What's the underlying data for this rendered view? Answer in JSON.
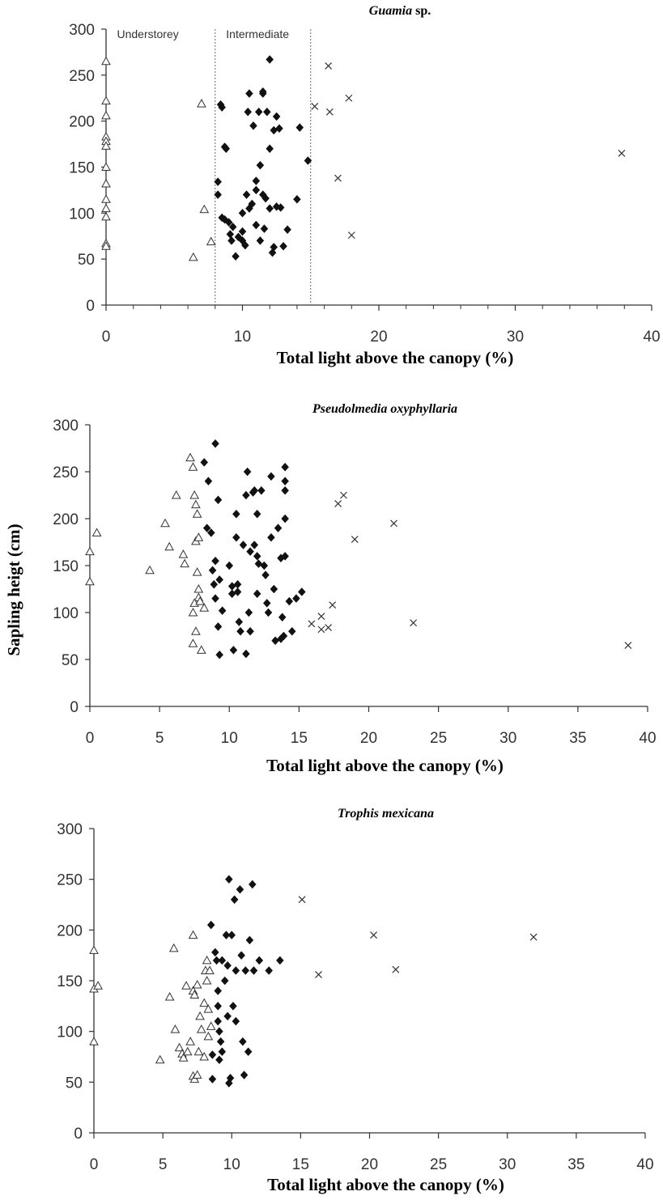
{
  "chart_data": [
    {
      "type": "scatter",
      "title": "Guamia",
      "title_suffix": " sp.",
      "xlabel": "Total light above the canopy (%)",
      "ylabel": "",
      "xlim": [
        0,
        40
      ],
      "ylim": [
        0,
        300
      ],
      "xticks": [
        "0",
        "10",
        "20",
        "30",
        "40"
      ],
      "yticks": [
        "0",
        "50",
        "100",
        "150",
        "200",
        "250",
        "300"
      ],
      "zone_labels": [
        "Understorey",
        "Intermediate"
      ],
      "zone_boundaries": [
        8,
        15
      ],
      "series": [
        {
          "marker": "triangle",
          "points": [
            [
              0,
              265
            ],
            [
              0,
              222
            ],
            [
              0,
              206
            ],
            [
              0,
              183
            ],
            [
              0,
              178
            ],
            [
              0,
              173
            ],
            [
              0,
              150
            ],
            [
              0,
              132
            ],
            [
              0,
              115
            ],
            [
              0,
              105
            ],
            [
              0,
              96
            ],
            [
              0,
              67
            ],
            [
              0,
              64
            ],
            [
              7,
              219
            ],
            [
              7.2,
              104
            ],
            [
              7.7,
              69
            ],
            [
              6.4,
              52
            ]
          ]
        },
        {
          "marker": "diamond",
          "points": [
            [
              8.2,
              134
            ],
            [
              8.2,
              120
            ],
            [
              8.4,
              218
            ],
            [
              8.5,
              215
            ],
            [
              8.7,
              172
            ],
            [
              8.8,
              170
            ],
            [
              8.5,
              95
            ],
            [
              8.7,
              93
            ],
            [
              9,
              90
            ],
            [
              9.1,
              77
            ],
            [
              9.2,
              70
            ],
            [
              9.3,
              85
            ],
            [
              9.5,
              53
            ],
            [
              9.7,
              74
            ],
            [
              10,
              100
            ],
            [
              10,
              80
            ],
            [
              10,
              70
            ],
            [
              10.2,
              65
            ],
            [
              10.3,
              120
            ],
            [
              10.4,
              210
            ],
            [
              10.5,
              230
            ],
            [
              10.5,
              105
            ],
            [
              10.7,
              110
            ],
            [
              10.8,
              195
            ],
            [
              11,
              135
            ],
            [
              11,
              125
            ],
            [
              11,
              87
            ],
            [
              11.2,
              210
            ],
            [
              11.3,
              152
            ],
            [
              11.3,
              70
            ],
            [
              11.5,
              232
            ],
            [
              11.5,
              230
            ],
            [
              11.5,
              120
            ],
            [
              11.7,
              116
            ],
            [
              11.8,
              210
            ],
            [
              12,
              267
            ],
            [
              12,
              170
            ],
            [
              12,
              105
            ],
            [
              12.2,
              57
            ],
            [
              12.3,
              190
            ],
            [
              12.5,
              205
            ],
            [
              12.5,
              107
            ],
            [
              12.7,
              192
            ],
            [
              12.8,
              106
            ],
            [
              13,
              64
            ],
            [
              13.3,
              82
            ],
            [
              14,
              115
            ],
            [
              14.2,
              193
            ],
            [
              14.8,
              157
            ],
            [
              12.3,
              63
            ],
            [
              11.6,
              83
            ]
          ]
        },
        {
          "marker": "cross",
          "points": [
            [
              16.3,
              260
            ],
            [
              15.3,
              216
            ],
            [
              16.4,
              210
            ],
            [
              17.8,
              225
            ],
            [
              17,
              138
            ],
            [
              18,
              76
            ],
            [
              37.8,
              165
            ]
          ]
        }
      ]
    },
    {
      "type": "scatter",
      "title": "Pseudolmedia oxyphyllaria",
      "title_suffix": "",
      "xlabel": "Total light above the canopy (%)",
      "ylabel": "Sapling heigt (cm)",
      "xlim": [
        0,
        40
      ],
      "ylim": [
        0,
        300
      ],
      "xticks": [
        "0",
        "5",
        "10",
        "15",
        "20",
        "25",
        "30",
        "35",
        "40"
      ],
      "yticks": [
        "0",
        "50",
        "100",
        "150",
        "200",
        "250",
        "300"
      ],
      "zone_labels": [],
      "zone_boundaries": [],
      "series": [
        {
          "marker": "triangle",
          "points": [
            [
              0,
              165
            ],
            [
              0,
              133
            ],
            [
              0.5,
              185
            ],
            [
              4.3,
              145
            ],
            [
              5.4,
              195
            ],
            [
              5.7,
              170
            ],
            [
              6.2,
              225
            ],
            [
              6.7,
              162
            ],
            [
              6.8,
              152
            ],
            [
              7.2,
              265
            ],
            [
              7.4,
              255
            ],
            [
              7.5,
              225
            ],
            [
              7.6,
              215
            ],
            [
              7.7,
              205
            ],
            [
              7.6,
              176
            ],
            [
              7.7,
              143
            ],
            [
              7.8,
              180
            ],
            [
              7.8,
              125
            ],
            [
              7.8,
              116
            ],
            [
              7.5,
              110
            ],
            [
              7.4,
              100
            ],
            [
              7.6,
              80
            ],
            [
              7.4,
              67
            ],
            [
              8,
              60
            ],
            [
              8.2,
              105
            ],
            [
              7.9,
              112
            ]
          ]
        },
        {
          "marker": "diamond",
          "points": [
            [
              9,
              280
            ],
            [
              8.2,
              260
            ],
            [
              8.5,
              240
            ],
            [
              9.2,
              220
            ],
            [
              8.4,
              190
            ],
            [
              8.7,
              185
            ],
            [
              8.8,
              145
            ],
            [
              8.9,
              130
            ],
            [
              9,
              155
            ],
            [
              9,
              115
            ],
            [
              9.3,
              135
            ],
            [
              9.5,
              102
            ],
            [
              9.2,
              85
            ],
            [
              9.3,
              55
            ],
            [
              10,
              150
            ],
            [
              10.2,
              128
            ],
            [
              10.2,
              120
            ],
            [
              10.5,
              205
            ],
            [
              10.5,
              180
            ],
            [
              10.6,
              130
            ],
            [
              10.7,
              90
            ],
            [
              10.8,
              80
            ],
            [
              10.3,
              60
            ],
            [
              10.6,
              122
            ],
            [
              11,
              172
            ],
            [
              11.2,
              225
            ],
            [
              11.3,
              250
            ],
            [
              11.4,
              100
            ],
            [
              11.5,
              80
            ],
            [
              11.2,
              56
            ],
            [
              11.7,
              228
            ],
            [
              11.8,
              230
            ],
            [
              11.8,
              172
            ],
            [
              12,
              205
            ],
            [
              12,
              160
            ],
            [
              12.1,
              152
            ],
            [
              12,
              120
            ],
            [
              12.3,
              230
            ],
            [
              12.5,
              150
            ],
            [
              12.6,
              140
            ],
            [
              12.7,
              110
            ],
            [
              12.8,
              100
            ],
            [
              13,
              245
            ],
            [
              13,
              180
            ],
            [
              13.2,
              125
            ],
            [
              13.3,
              70
            ],
            [
              13.5,
              190
            ],
            [
              13.7,
              158
            ],
            [
              13.8,
              95
            ],
            [
              13.9,
              75
            ],
            [
              14,
              255
            ],
            [
              14,
              240
            ],
            [
              14,
              230
            ],
            [
              14,
              200
            ],
            [
              14,
              160
            ],
            [
              14.3,
              112
            ],
            [
              14.5,
              80
            ],
            [
              14.8,
              115
            ],
            [
              15.2,
              122
            ],
            [
              13.7,
              72
            ],
            [
              11.5,
              165
            ]
          ]
        },
        {
          "marker": "cross",
          "points": [
            [
              18.2,
              225
            ],
            [
              17.8,
              216
            ],
            [
              19,
              178
            ],
            [
              21.8,
              195
            ],
            [
              17.4,
              108
            ],
            [
              16.6,
              96
            ],
            [
              15.9,
              88
            ],
            [
              16.6,
              82
            ],
            [
              17.1,
              84
            ],
            [
              23.2,
              89
            ],
            [
              38.6,
              65
            ]
          ]
        }
      ]
    },
    {
      "type": "scatter",
      "title": "Trophis mexicana",
      "title_suffix": "",
      "xlabel": "Total light above the canopy (%)",
      "ylabel": "",
      "xlim": [
        0,
        40
      ],
      "ylim": [
        0,
        300
      ],
      "xticks": [
        "0",
        "5",
        "10",
        "15",
        "20",
        "25",
        "30",
        "35",
        "40"
      ],
      "yticks": [
        "0",
        "50",
        "100",
        "150",
        "200",
        "250",
        "300"
      ],
      "zone_labels": [],
      "zone_boundaries": [],
      "series": [
        {
          "marker": "triangle",
          "points": [
            [
              0,
              180
            ],
            [
              0,
              142
            ],
            [
              0.3,
              145
            ],
            [
              0,
              90
            ],
            [
              4.8,
              72
            ],
            [
              5.5,
              134
            ],
            [
              5.8,
              182
            ],
            [
              5.9,
              102
            ],
            [
              6.2,
              84
            ],
            [
              6.4,
              78
            ],
            [
              6.5,
              74
            ],
            [
              6.7,
              145
            ],
            [
              6.8,
              80
            ],
            [
              7,
              90
            ],
            [
              7.2,
              195
            ],
            [
              7.2,
              140
            ],
            [
              7.3,
              136
            ],
            [
              7.2,
              56
            ],
            [
              7.3,
              53
            ],
            [
              7.5,
              146
            ],
            [
              7.6,
              80
            ],
            [
              7.7,
              115
            ],
            [
              7.8,
              102
            ],
            [
              8,
              128
            ],
            [
              8,
              75
            ],
            [
              8.1,
              160
            ],
            [
              8.2,
              170
            ],
            [
              8.2,
              150
            ],
            [
              8.3,
              122
            ],
            [
              8.4,
              160
            ],
            [
              8.3,
              95
            ],
            [
              8.5,
              105
            ],
            [
              7.5,
              57
            ]
          ]
        },
        {
          "marker": "diamond",
          "points": [
            [
              8.5,
              205
            ],
            [
              8.8,
              178
            ],
            [
              8.9,
              170
            ],
            [
              8.6,
              77
            ],
            [
              8.6,
              53
            ],
            [
              9,
              140
            ],
            [
              9,
              125
            ],
            [
              9,
              110
            ],
            [
              9.1,
              100
            ],
            [
              9.2,
              90
            ],
            [
              9.3,
              170
            ],
            [
              9.3,
              80
            ],
            [
              9.5,
              150
            ],
            [
              9.6,
              195
            ],
            [
              9.7,
              165
            ],
            [
              9.7,
              115
            ],
            [
              9.8,
              250
            ],
            [
              9.9,
              54
            ],
            [
              10,
              195
            ],
            [
              10.1,
              125
            ],
            [
              10.2,
              230
            ],
            [
              10.3,
              110
            ],
            [
              10.3,
              160
            ],
            [
              10.6,
              240
            ],
            [
              10.7,
              175
            ],
            [
              10.8,
              90
            ],
            [
              11,
              160
            ],
            [
              11.2,
              80
            ],
            [
              11.3,
              190
            ],
            [
              11.5,
              245
            ],
            [
              11.6,
              160
            ],
            [
              12,
              170
            ],
            [
              12.7,
              160
            ],
            [
              13.5,
              170
            ],
            [
              9.1,
              72
            ],
            [
              10.9,
              57
            ],
            [
              9.8,
              49
            ]
          ]
        },
        {
          "marker": "cross",
          "points": [
            [
              15.1,
              230
            ],
            [
              20.3,
              195
            ],
            [
              21.9,
              161
            ],
            [
              16.3,
              156
            ],
            [
              31.9,
              193
            ]
          ]
        }
      ]
    }
  ]
}
